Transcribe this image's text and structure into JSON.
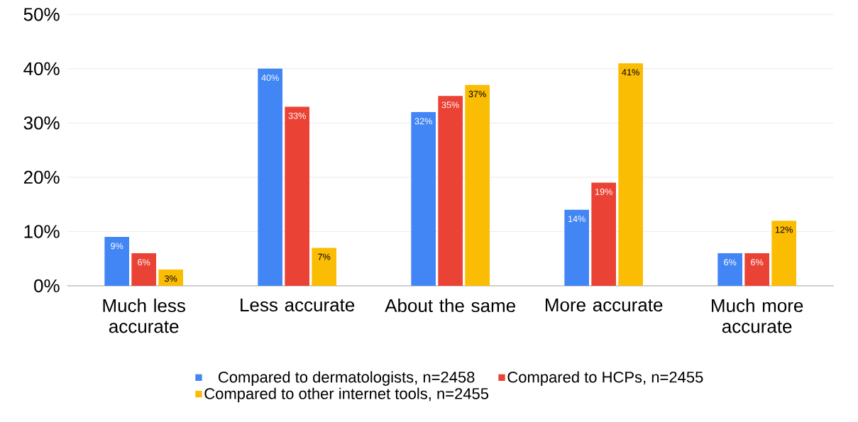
{
  "chart_data": {
    "type": "bar",
    "categories": [
      "Much less accurate",
      "Less accurate",
      "About the same",
      "More accurate",
      "Much more accurate"
    ],
    "series": [
      {
        "name": "Compared to dermatologists, n=2458",
        "color": "#4285f4",
        "values": [
          9,
          40,
          32,
          14,
          6
        ],
        "value_labels": [
          "9%",
          "40%",
          "32%",
          "14%",
          "6%"
        ]
      },
      {
        "name": "Compared to HCPs, n=2455",
        "color": "#ea4335",
        "values": [
          6,
          33,
          35,
          19,
          6
        ],
        "value_labels": [
          "6%",
          "33%",
          "35%",
          "19%",
          "6%"
        ]
      },
      {
        "name": "Compared to other internet tools, n=2455",
        "color": "#fbbc04",
        "values": [
          3,
          7,
          37,
          41,
          12
        ],
        "value_labels": [
          "3%",
          "7%",
          "37%",
          "41%",
          "12%"
        ]
      }
    ],
    "ylim": [
      0,
      50
    ],
    "yticks": [
      {
        "value": 0,
        "label": "0%"
      },
      {
        "value": 10,
        "label": "10%"
      },
      {
        "value": 20,
        "label": "20%"
      },
      {
        "value": 30,
        "label": "30%"
      },
      {
        "value": 40,
        "label": "40%"
      },
      {
        "value": 50,
        "label": "50%"
      }
    ],
    "grid": "y",
    "legend": "bottom"
  }
}
